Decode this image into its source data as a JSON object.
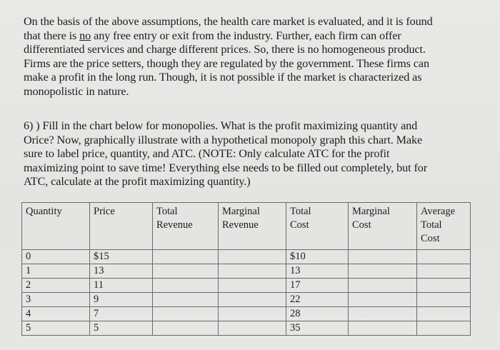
{
  "paragraph1": {
    "lines": [
      "On the basis of the above assumptions, the health care market is evaluated, and it is found",
      "any free entry or exit from the industry. Further, each firm can offer",
      "differentiated services and charge different prices. So, there is no homogeneous product.",
      "Firms are the price setters, though they are regulated by the government. These firms can",
      "make a profit in the long run. Though, it is not possible if the market is characterized as",
      "monopolistic in nature."
    ],
    "line2_prefix": "that there is ",
    "line2_underlined": "no"
  },
  "question": {
    "lines": [
      "6) ) Fill in the chart below for monopolies. What is the profit maximizing quantity and",
      "Orice? Now, graphically illustrate with a hypothetical monopoly graph this chart.  Make",
      "sure to label price, quantity, and ATC. (NOTE: Only calculate ATC for the profit",
      "maximizing point to save time! Everything else needs to be filled out completely, but for",
      "ATC, calculate at the profit maximizing quantity.)"
    ]
  },
  "table": {
    "headers": [
      [
        "Quantity"
      ],
      [
        "Price"
      ],
      [
        "Total",
        "Revenue"
      ],
      [
        "Marginal",
        "Revenue"
      ],
      [
        "Total",
        "Cost"
      ],
      [
        "Marginal",
        "Cost"
      ],
      [
        "Average",
        "Total",
        "Cost"
      ]
    ],
    "rows": [
      [
        "0",
        "$15",
        "",
        "",
        "$10",
        "",
        ""
      ],
      [
        "1",
        "13",
        "",
        "",
        "13",
        "",
        ""
      ],
      [
        "2",
        "11",
        "",
        "",
        "17",
        "",
        ""
      ],
      [
        "3",
        "9",
        "",
        "",
        "22",
        "",
        ""
      ],
      [
        "4",
        "7",
        "",
        "",
        "28",
        "",
        ""
      ],
      [
        "5",
        "5",
        "",
        "",
        "35",
        "",
        ""
      ]
    ]
  }
}
